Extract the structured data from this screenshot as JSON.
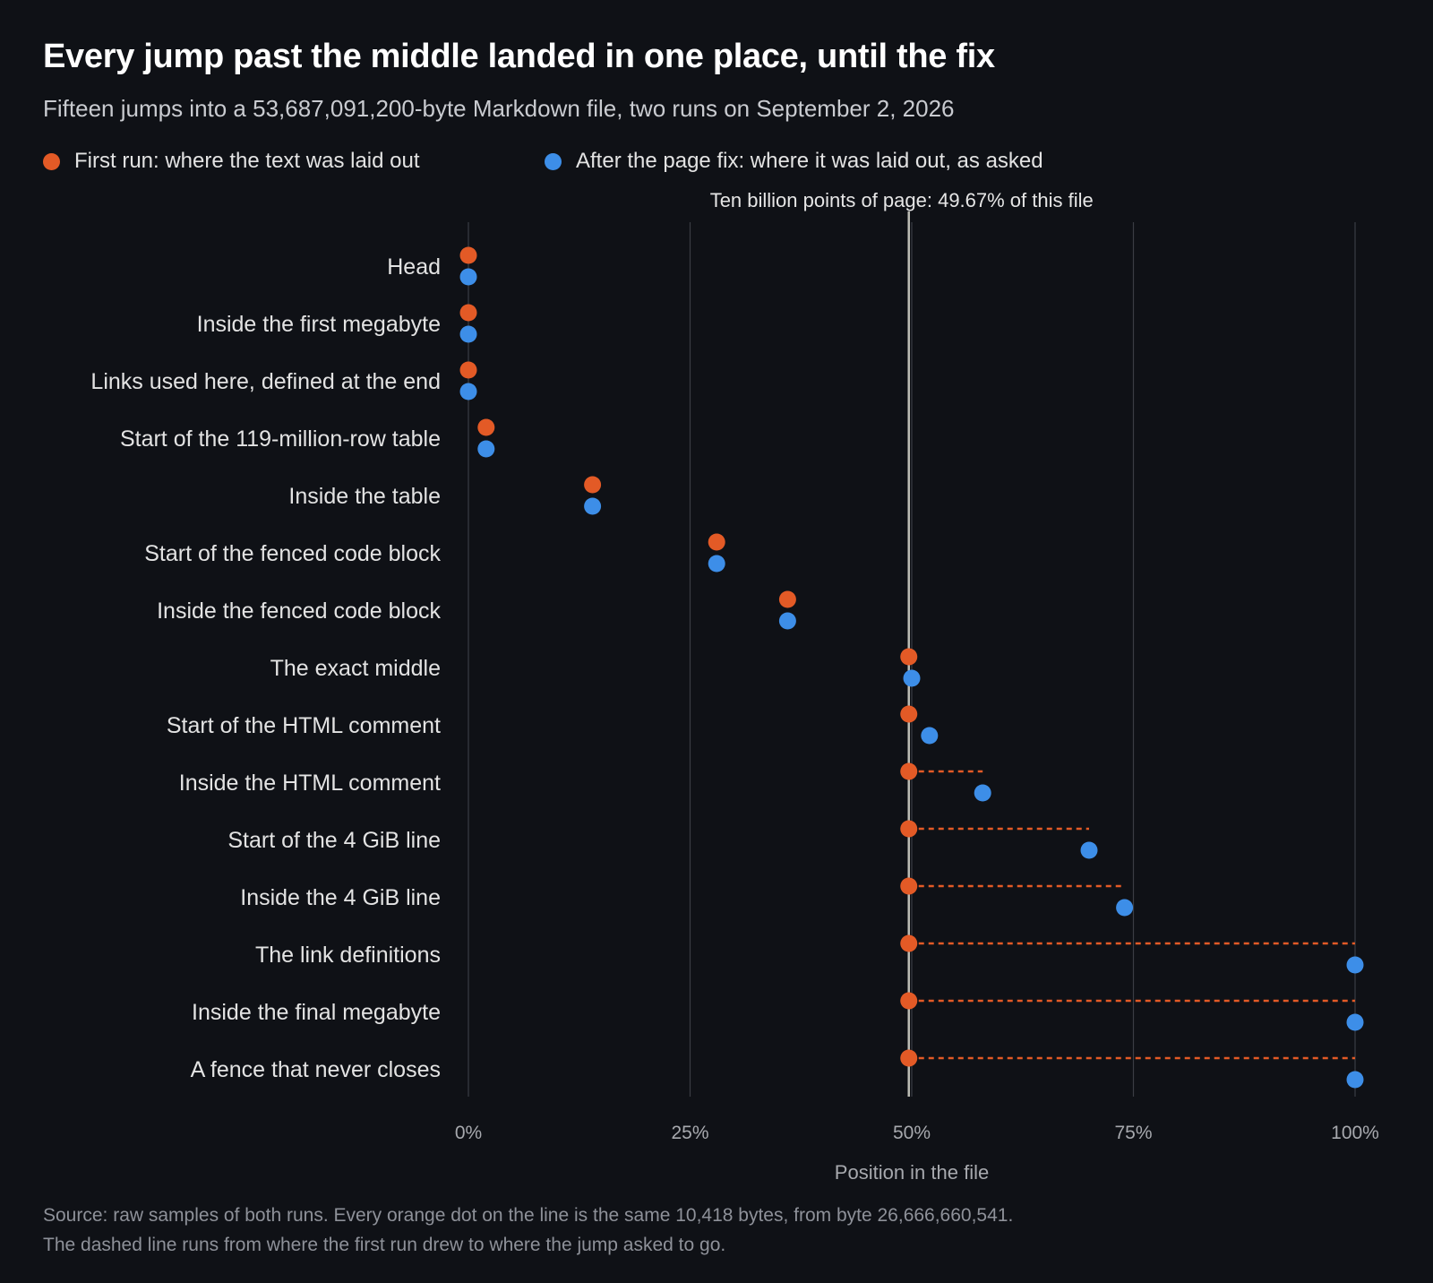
{
  "header": {
    "title": "Every jump past the middle landed in one place, until the fix",
    "subtitle": "Fifteen jumps into a 53,687,091,200-byte Markdown file, two runs on September 2, 2026"
  },
  "colors": {
    "first_run": "#e35a26",
    "after_fix": "#3d8ee8",
    "background": "#0f1116",
    "reference_line": "#bdbdb5",
    "grid": "#3a3d44"
  },
  "legend": {
    "first_run": "First run: where the text was laid out",
    "after_fix": "After the page fix: where it was laid out, as asked"
  },
  "footer": {
    "line1": "Source: raw samples of both runs. Every orange dot on the line is the same 10,418 bytes, from byte 26,666,660,541.",
    "line2": "The dashed line runs from where the first run drew to where the jump asked to go."
  },
  "chart_data": {
    "type": "scatter",
    "xlabel": "Position in the file",
    "x_unit": "percent of file",
    "xlim": [
      0,
      100
    ],
    "x_ticks": [
      0,
      25,
      50,
      75,
      100
    ],
    "x_tick_labels": [
      "0%",
      "25%",
      "50%",
      "75%",
      "100%"
    ],
    "grid": true,
    "legend_position": "top-left",
    "reference_line": {
      "x": 49.67,
      "label": "Ten billion points of page: 49.67% of this file"
    },
    "categories": [
      "Head",
      "Inside the first megabyte",
      "Links used here, defined at the end",
      "Start of the 119-million-row table",
      "Inside the table",
      "Start of the fenced code block",
      "Inside the fenced code block",
      "The exact middle",
      "Start of the HTML comment",
      "Inside the HTML comment",
      "Start of the 4 GiB line",
      "Inside the 4 GiB line",
      "The link definitions",
      "Inside the final megabyte",
      "A fence that never closes"
    ],
    "series": [
      {
        "name": "First run: where the text was laid out",
        "values": [
          0,
          0,
          0,
          2,
          14,
          28,
          36,
          49.67,
          49.67,
          49.67,
          49.67,
          49.67,
          49.67,
          49.67,
          49.67
        ]
      },
      {
        "name": "After the page fix: where it was laid out, as asked",
        "values": [
          0,
          0,
          0,
          2,
          14,
          28,
          36,
          50,
          52,
          58,
          70,
          74,
          100,
          100,
          100
        ]
      }
    ]
  }
}
